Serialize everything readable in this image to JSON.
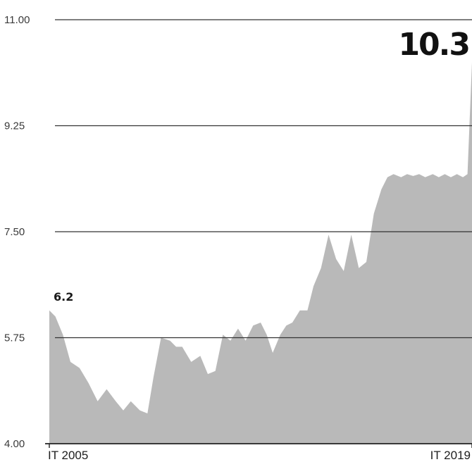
{
  "chart_data": {
    "type": "area",
    "title": "",
    "xlabel": "",
    "ylabel": "",
    "ylim": [
      4.0,
      11.0
    ],
    "yticks": [
      {
        "value": 11.0,
        "label": "11.00"
      },
      {
        "value": 9.25,
        "label": "9.25"
      },
      {
        "value": 7.5,
        "label": "7.50"
      },
      {
        "value": 5.75,
        "label": "5.75"
      },
      {
        "value": 4.0,
        "label": "4.00"
      }
    ],
    "x_range": [
      2005,
      2019
    ],
    "xtick_labels": [
      {
        "x": 2005,
        "label": "IT 2005"
      },
      {
        "x": 2019,
        "label": "IT 2019"
      }
    ],
    "grid": true,
    "colors": {
      "area": "#b9b9b9",
      "gridline": "#333333",
      "axis": "#222222"
    },
    "series": [
      {
        "x": [
          2005.0,
          2005.2,
          2005.45,
          2005.7,
          2006.0,
          2006.3,
          2006.6,
          2006.9,
          2007.2,
          2007.45,
          2007.7,
          2008.0,
          2008.25,
          2008.45,
          2008.7,
          2009.0,
          2009.2,
          2009.4,
          2009.7,
          2010.0,
          2010.25,
          2010.5,
          2010.75,
          2011.0,
          2011.25,
          2011.5,
          2011.75,
          2012.0,
          2012.2,
          2012.4,
          2012.65,
          2012.85,
          2013.05,
          2013.3,
          2013.55,
          2013.75,
          2014.0,
          2014.25,
          2014.5,
          2014.75,
          2015.0,
          2015.25,
          2015.5,
          2015.75,
          2016.0,
          2016.2,
          2016.4,
          2016.65,
          2016.85,
          2017.05,
          2017.25,
          2017.45,
          2017.7,
          2017.9,
          2018.1,
          2018.3,
          2018.5,
          2018.7,
          2018.85,
          2019.0
        ],
        "values": [
          6.2,
          6.1,
          5.8,
          5.35,
          5.25,
          5.0,
          4.7,
          4.9,
          4.7,
          4.55,
          4.7,
          4.55,
          4.5,
          5.1,
          5.75,
          5.7,
          5.6,
          5.6,
          5.35,
          5.45,
          5.15,
          5.2,
          5.8,
          5.7,
          5.9,
          5.7,
          5.95,
          6.0,
          5.8,
          5.5,
          5.8,
          5.95,
          6.0,
          6.2,
          6.2,
          6.6,
          6.9,
          7.45,
          7.05,
          6.85,
          7.45,
          6.9,
          7.0,
          7.8,
          8.2,
          8.4,
          8.45,
          8.4,
          8.45,
          8.42,
          8.45,
          8.4,
          8.45,
          8.4,
          8.45,
          8.4,
          8.45,
          8.4,
          8.45,
          10.3
        ]
      }
    ],
    "annotations": [
      {
        "x": 2005,
        "value": 6.2,
        "text": "6.2"
      },
      {
        "x": 2019,
        "value": 10.3,
        "text": "10.3"
      }
    ]
  }
}
